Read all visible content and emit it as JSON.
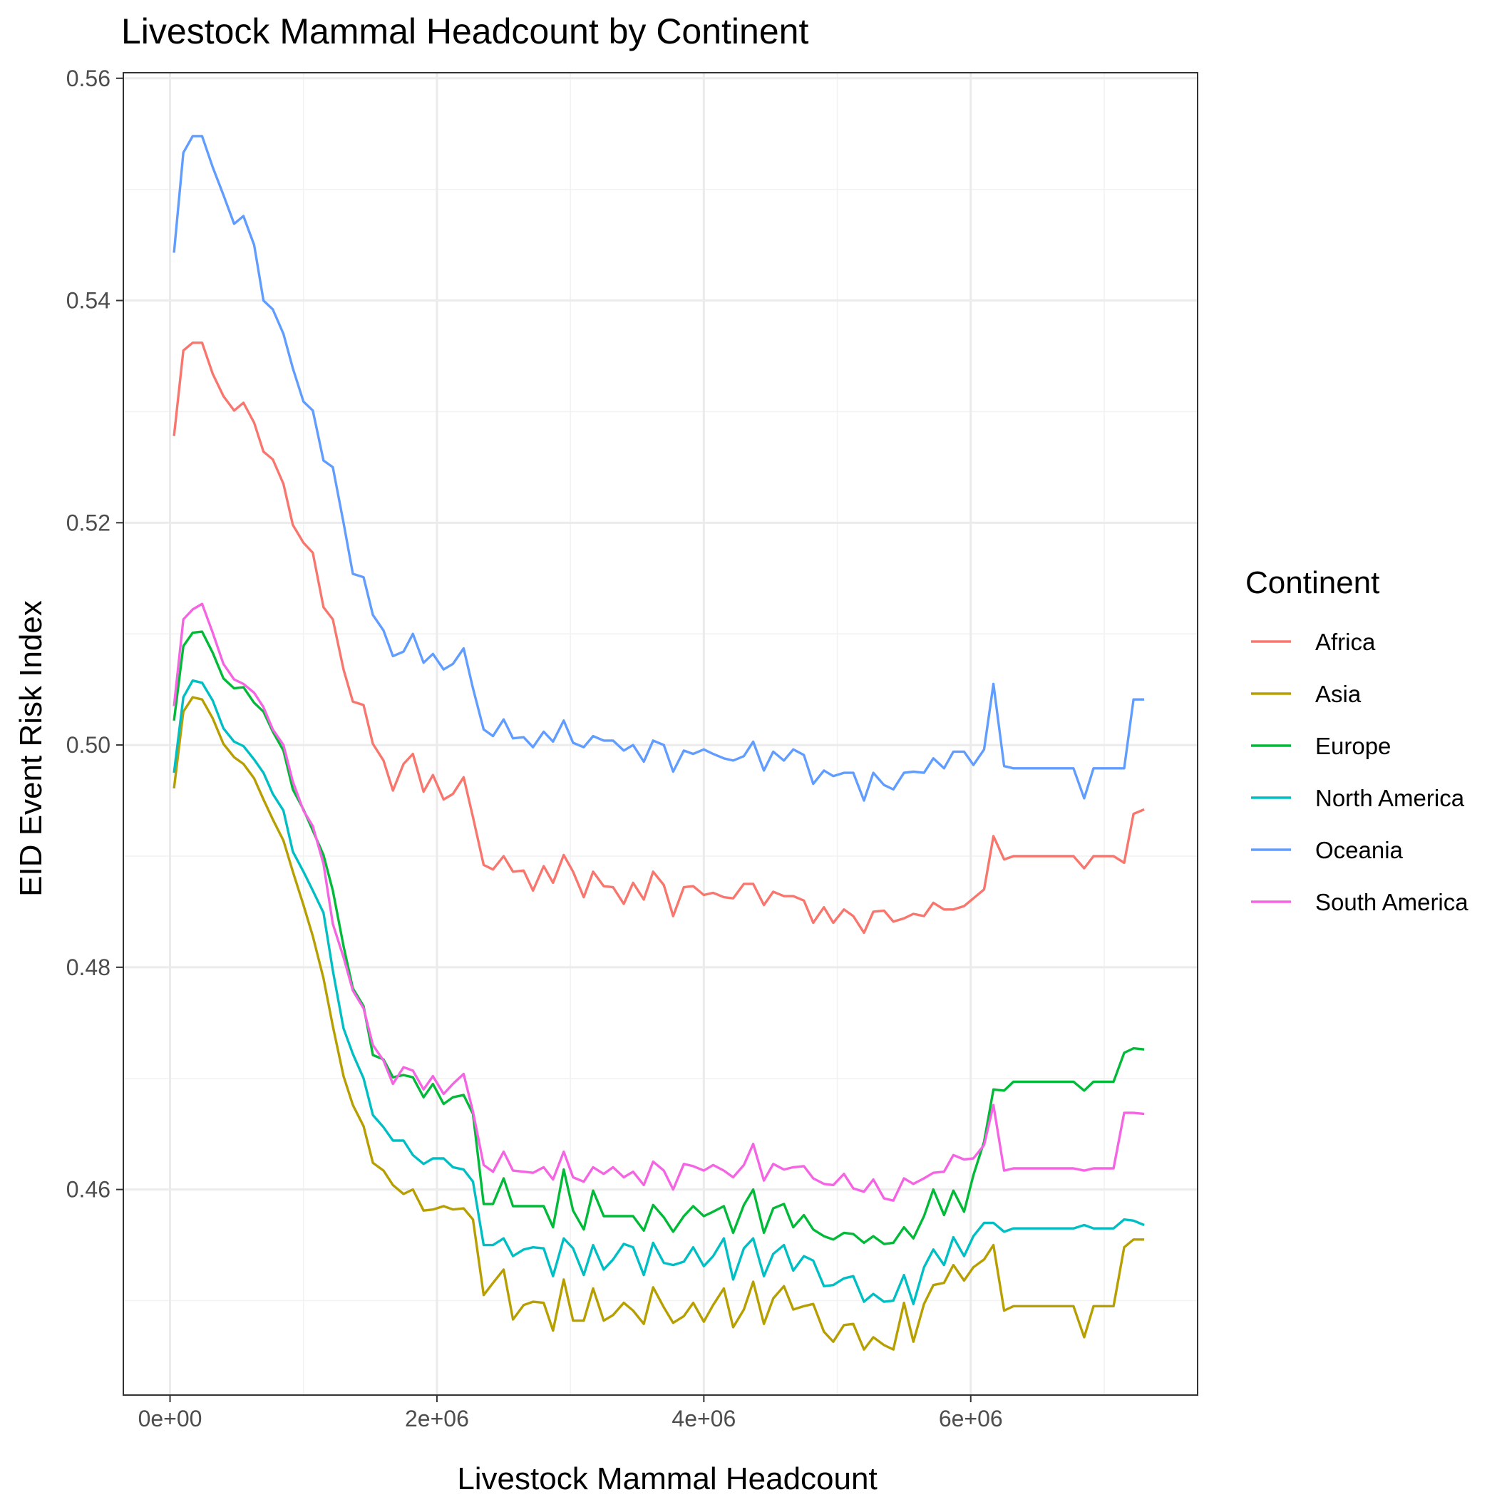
{
  "chart_data": {
    "type": "line",
    "title": "Livestock Mammal Headcount by Continent",
    "xlabel": "Livestock Mammal Headcount",
    "ylabel": "EID Event Risk Index",
    "xlim": [
      -350000,
      7700000
    ],
    "ylim": [
      0.4415,
      0.5605
    ],
    "x_ticks": [
      0,
      2000000,
      4000000,
      6000000
    ],
    "x_tick_labels": [
      "0e+00",
      "2e+06",
      "4e+06",
      "6e+06"
    ],
    "y_ticks": [
      0.46,
      0.48,
      0.5,
      0.52,
      0.54,
      0.56
    ],
    "y_tick_labels": [
      "0.46",
      "0.48",
      "0.50",
      "0.52",
      "0.54",
      "0.56"
    ],
    "grid": true,
    "legend": {
      "title": "Continent",
      "position": "right"
    },
    "x": [
      30000,
      100000,
      170000,
      240000,
      320000,
      400000,
      480000,
      550000,
      630000,
      700000,
      770000,
      850000,
      920000,
      1000000,
      1070000,
      1150000,
      1220000,
      1300000,
      1370000,
      1450000,
      1520000,
      1600000,
      1670000,
      1750000,
      1820000,
      1900000,
      1970000,
      2050000,
      2120000,
      2200000,
      2270000,
      2350000,
      2420000,
      2500000,
      2570000,
      2650000,
      2720000,
      2800000,
      2870000,
      2950000,
      3020000,
      3100000,
      3170000,
      3250000,
      3320000,
      3400000,
      3470000,
      3550000,
      3620000,
      3700000,
      3770000,
      3850000,
      3920000,
      4000000,
      4070000,
      4150000,
      4220000,
      4300000,
      4370000,
      4450000,
      4520000,
      4600000,
      4670000,
      4750000,
      4820000,
      4900000,
      4970000,
      5050000,
      5120000,
      5200000,
      5270000,
      5350000,
      5420000,
      5500000,
      5570000,
      5650000,
      5720000,
      5800000,
      5870000,
      5950000,
      6020000,
      6100000,
      6170000,
      6250000,
      6320000,
      6400000,
      6470000,
      6550000,
      6620000,
      6700000,
      6770000,
      6850000,
      6920000,
      7000000,
      7070000,
      7150000,
      7220000,
      7300000
    ],
    "series": [
      {
        "name": "Africa",
        "color": "#f8766d",
        "values": [
          0.5278,
          0.5355,
          0.5362,
          0.5362,
          0.5334,
          0.5314,
          0.5301,
          0.5308,
          0.529,
          0.5264,
          0.5257,
          0.5235,
          0.5198,
          0.5182,
          0.5173,
          0.5124,
          0.5113,
          0.5068,
          0.5039,
          0.5036,
          0.5001,
          0.4986,
          0.4959,
          0.4983,
          0.4992,
          0.4958,
          0.4973,
          0.4951,
          0.4956,
          0.4971,
          0.4935,
          0.4892,
          0.4888,
          0.49,
          0.4886,
          0.4887,
          0.4869,
          0.4891,
          0.4876,
          0.4901,
          0.4886,
          0.4863,
          0.4886,
          0.4873,
          0.4872,
          0.4857,
          0.4876,
          0.4861,
          0.4886,
          0.4874,
          0.4846,
          0.4872,
          0.4873,
          0.4865,
          0.4867,
          0.4863,
          0.4862,
          0.4875,
          0.4875,
          0.4856,
          0.4868,
          0.4864,
          0.4864,
          0.486,
          0.484,
          0.4854,
          0.484,
          0.4852,
          0.4846,
          0.4831,
          0.485,
          0.4851,
          0.4841,
          0.4844,
          0.4848,
          0.4846,
          0.4858,
          0.4852,
          0.4852,
          0.4855,
          0.4862,
          0.487,
          0.4918,
          0.4897,
          0.49,
          0.49,
          0.49,
          0.49,
          0.49,
          0.49,
          0.49,
          0.4889,
          0.49,
          0.49,
          0.49,
          0.4894,
          0.4938,
          0.4942
        ]
      },
      {
        "name": "Asia",
        "color": "#b79f00",
        "values": [
          0.4961,
          0.503,
          0.5043,
          0.5041,
          0.5024,
          0.5001,
          0.4989,
          0.4983,
          0.497,
          0.4951,
          0.4933,
          0.4914,
          0.4886,
          0.4856,
          0.4828,
          0.479,
          0.4747,
          0.4702,
          0.4676,
          0.4657,
          0.4624,
          0.4617,
          0.4604,
          0.4596,
          0.46,
          0.4581,
          0.4582,
          0.4585,
          0.4582,
          0.4583,
          0.4573,
          0.4505,
          0.4516,
          0.4528,
          0.4483,
          0.4496,
          0.4499,
          0.4498,
          0.4473,
          0.4519,
          0.4482,
          0.4482,
          0.4511,
          0.4482,
          0.4487,
          0.4498,
          0.4491,
          0.4479,
          0.4512,
          0.4494,
          0.448,
          0.4486,
          0.4498,
          0.4481,
          0.4496,
          0.4511,
          0.4476,
          0.4492,
          0.4517,
          0.4479,
          0.4502,
          0.4513,
          0.4492,
          0.4495,
          0.4497,
          0.4472,
          0.4463,
          0.4478,
          0.4479,
          0.4456,
          0.4467,
          0.446,
          0.4456,
          0.4498,
          0.4463,
          0.4497,
          0.4514,
          0.4516,
          0.4532,
          0.4518,
          0.453,
          0.4537,
          0.455,
          0.4491,
          0.4495,
          0.4495,
          0.4495,
          0.4495,
          0.4495,
          0.4495,
          0.4495,
          0.4467,
          0.4495,
          0.4495,
          0.4495,
          0.4548,
          0.4555,
          0.4555
        ]
      },
      {
        "name": "Europe",
        "color": "#00ba38",
        "values": [
          0.5022,
          0.5089,
          0.5101,
          0.5102,
          0.5083,
          0.506,
          0.5051,
          0.5052,
          0.5038,
          0.503,
          0.5012,
          0.4995,
          0.496,
          0.4942,
          0.4923,
          0.4901,
          0.4869,
          0.4819,
          0.4781,
          0.4765,
          0.4721,
          0.4717,
          0.4701,
          0.4703,
          0.4701,
          0.4683,
          0.4695,
          0.4677,
          0.4683,
          0.4685,
          0.4668,
          0.4587,
          0.4587,
          0.461,
          0.4585,
          0.4585,
          0.4585,
          0.4585,
          0.4566,
          0.4618,
          0.4581,
          0.4564,
          0.4599,
          0.4576,
          0.4576,
          0.4576,
          0.4576,
          0.4563,
          0.4586,
          0.4575,
          0.4562,
          0.4576,
          0.4585,
          0.4576,
          0.458,
          0.4585,
          0.4561,
          0.4586,
          0.46,
          0.4561,
          0.4583,
          0.4587,
          0.4566,
          0.4577,
          0.4564,
          0.4558,
          0.4555,
          0.4561,
          0.456,
          0.4552,
          0.4558,
          0.4551,
          0.4552,
          0.4566,
          0.4556,
          0.4576,
          0.46,
          0.4577,
          0.4599,
          0.458,
          0.4613,
          0.4643,
          0.469,
          0.4689,
          0.4697,
          0.4697,
          0.4697,
          0.4697,
          0.4697,
          0.4697,
          0.4697,
          0.4689,
          0.4697,
          0.4697,
          0.4697,
          0.4723,
          0.4727,
          0.4726
        ]
      },
      {
        "name": "North America",
        "color": "#00bfc4",
        "values": [
          0.4975,
          0.5043,
          0.5058,
          0.5056,
          0.504,
          0.5015,
          0.5003,
          0.4999,
          0.4987,
          0.4975,
          0.4956,
          0.4941,
          0.4904,
          0.4886,
          0.4869,
          0.4849,
          0.4797,
          0.4745,
          0.4722,
          0.47,
          0.4667,
          0.4656,
          0.4644,
          0.4644,
          0.4631,
          0.4623,
          0.4628,
          0.4628,
          0.462,
          0.4618,
          0.4607,
          0.455,
          0.455,
          0.4556,
          0.454,
          0.4546,
          0.4548,
          0.4547,
          0.4522,
          0.4556,
          0.4547,
          0.4523,
          0.455,
          0.4528,
          0.4537,
          0.4551,
          0.4548,
          0.4523,
          0.4552,
          0.4534,
          0.4532,
          0.4535,
          0.4548,
          0.4531,
          0.454,
          0.4556,
          0.4519,
          0.4547,
          0.4556,
          0.4522,
          0.4542,
          0.455,
          0.4527,
          0.454,
          0.4536,
          0.4513,
          0.4514,
          0.452,
          0.4522,
          0.4499,
          0.4506,
          0.4499,
          0.45,
          0.4523,
          0.4497,
          0.453,
          0.4546,
          0.4532,
          0.4557,
          0.454,
          0.4558,
          0.457,
          0.457,
          0.4562,
          0.4565,
          0.4565,
          0.4565,
          0.4565,
          0.4565,
          0.4565,
          0.4565,
          0.4568,
          0.4565,
          0.4565,
          0.4565,
          0.4573,
          0.4572,
          0.4568
        ]
      },
      {
        "name": "Oceania",
        "color": "#619cff",
        "values": [
          0.5443,
          0.5533,
          0.5548,
          0.5548,
          0.552,
          0.5495,
          0.5469,
          0.5476,
          0.545,
          0.54,
          0.5392,
          0.537,
          0.5339,
          0.5309,
          0.5301,
          0.5256,
          0.525,
          0.52,
          0.5154,
          0.5151,
          0.5117,
          0.5103,
          0.508,
          0.5084,
          0.51,
          0.5074,
          0.5082,
          0.5068,
          0.5073,
          0.5087,
          0.5051,
          0.5014,
          0.5008,
          0.5023,
          0.5006,
          0.5007,
          0.4998,
          0.5012,
          0.5003,
          0.5022,
          0.5002,
          0.4998,
          0.5008,
          0.5004,
          0.5004,
          0.4995,
          0.5,
          0.4985,
          0.5004,
          0.5,
          0.4976,
          0.4995,
          0.4992,
          0.4996,
          0.4992,
          0.4988,
          0.4986,
          0.499,
          0.5003,
          0.4977,
          0.4994,
          0.4986,
          0.4996,
          0.4991,
          0.4965,
          0.4977,
          0.4972,
          0.4975,
          0.4975,
          0.495,
          0.4975,
          0.4964,
          0.496,
          0.4975,
          0.4976,
          0.4975,
          0.4988,
          0.4979,
          0.4994,
          0.4994,
          0.4982,
          0.4996,
          0.5055,
          0.4981,
          0.4979,
          0.4979,
          0.4979,
          0.4979,
          0.4979,
          0.4979,
          0.4979,
          0.4952,
          0.4979,
          0.4979,
          0.4979,
          0.4979,
          0.5041,
          0.5041
        ]
      },
      {
        "name": "South America",
        "color": "#f564e3",
        "values": [
          0.5035,
          0.5113,
          0.5122,
          0.5127,
          0.5101,
          0.5073,
          0.5059,
          0.5055,
          0.5047,
          0.5034,
          0.5014,
          0.5,
          0.4967,
          0.4941,
          0.4927,
          0.4893,
          0.4839,
          0.4809,
          0.4779,
          0.4763,
          0.473,
          0.4716,
          0.4695,
          0.471,
          0.4707,
          0.469,
          0.4702,
          0.4686,
          0.4695,
          0.4704,
          0.467,
          0.4622,
          0.4616,
          0.4634,
          0.4617,
          0.4616,
          0.4615,
          0.462,
          0.4609,
          0.4634,
          0.4611,
          0.4607,
          0.462,
          0.4614,
          0.462,
          0.4611,
          0.4616,
          0.4604,
          0.4625,
          0.4617,
          0.46,
          0.4623,
          0.4621,
          0.4617,
          0.4622,
          0.4617,
          0.4611,
          0.4622,
          0.4641,
          0.4608,
          0.4623,
          0.4618,
          0.462,
          0.4621,
          0.461,
          0.4605,
          0.4604,
          0.4614,
          0.4601,
          0.4598,
          0.4609,
          0.4592,
          0.459,
          0.461,
          0.4605,
          0.461,
          0.4615,
          0.4616,
          0.4631,
          0.4627,
          0.4628,
          0.464,
          0.4676,
          0.4617,
          0.4619,
          0.4619,
          0.4619,
          0.4619,
          0.4619,
          0.4619,
          0.4619,
          0.4617,
          0.4619,
          0.4619,
          0.4619,
          0.4669,
          0.4669,
          0.4668
        ]
      }
    ]
  }
}
